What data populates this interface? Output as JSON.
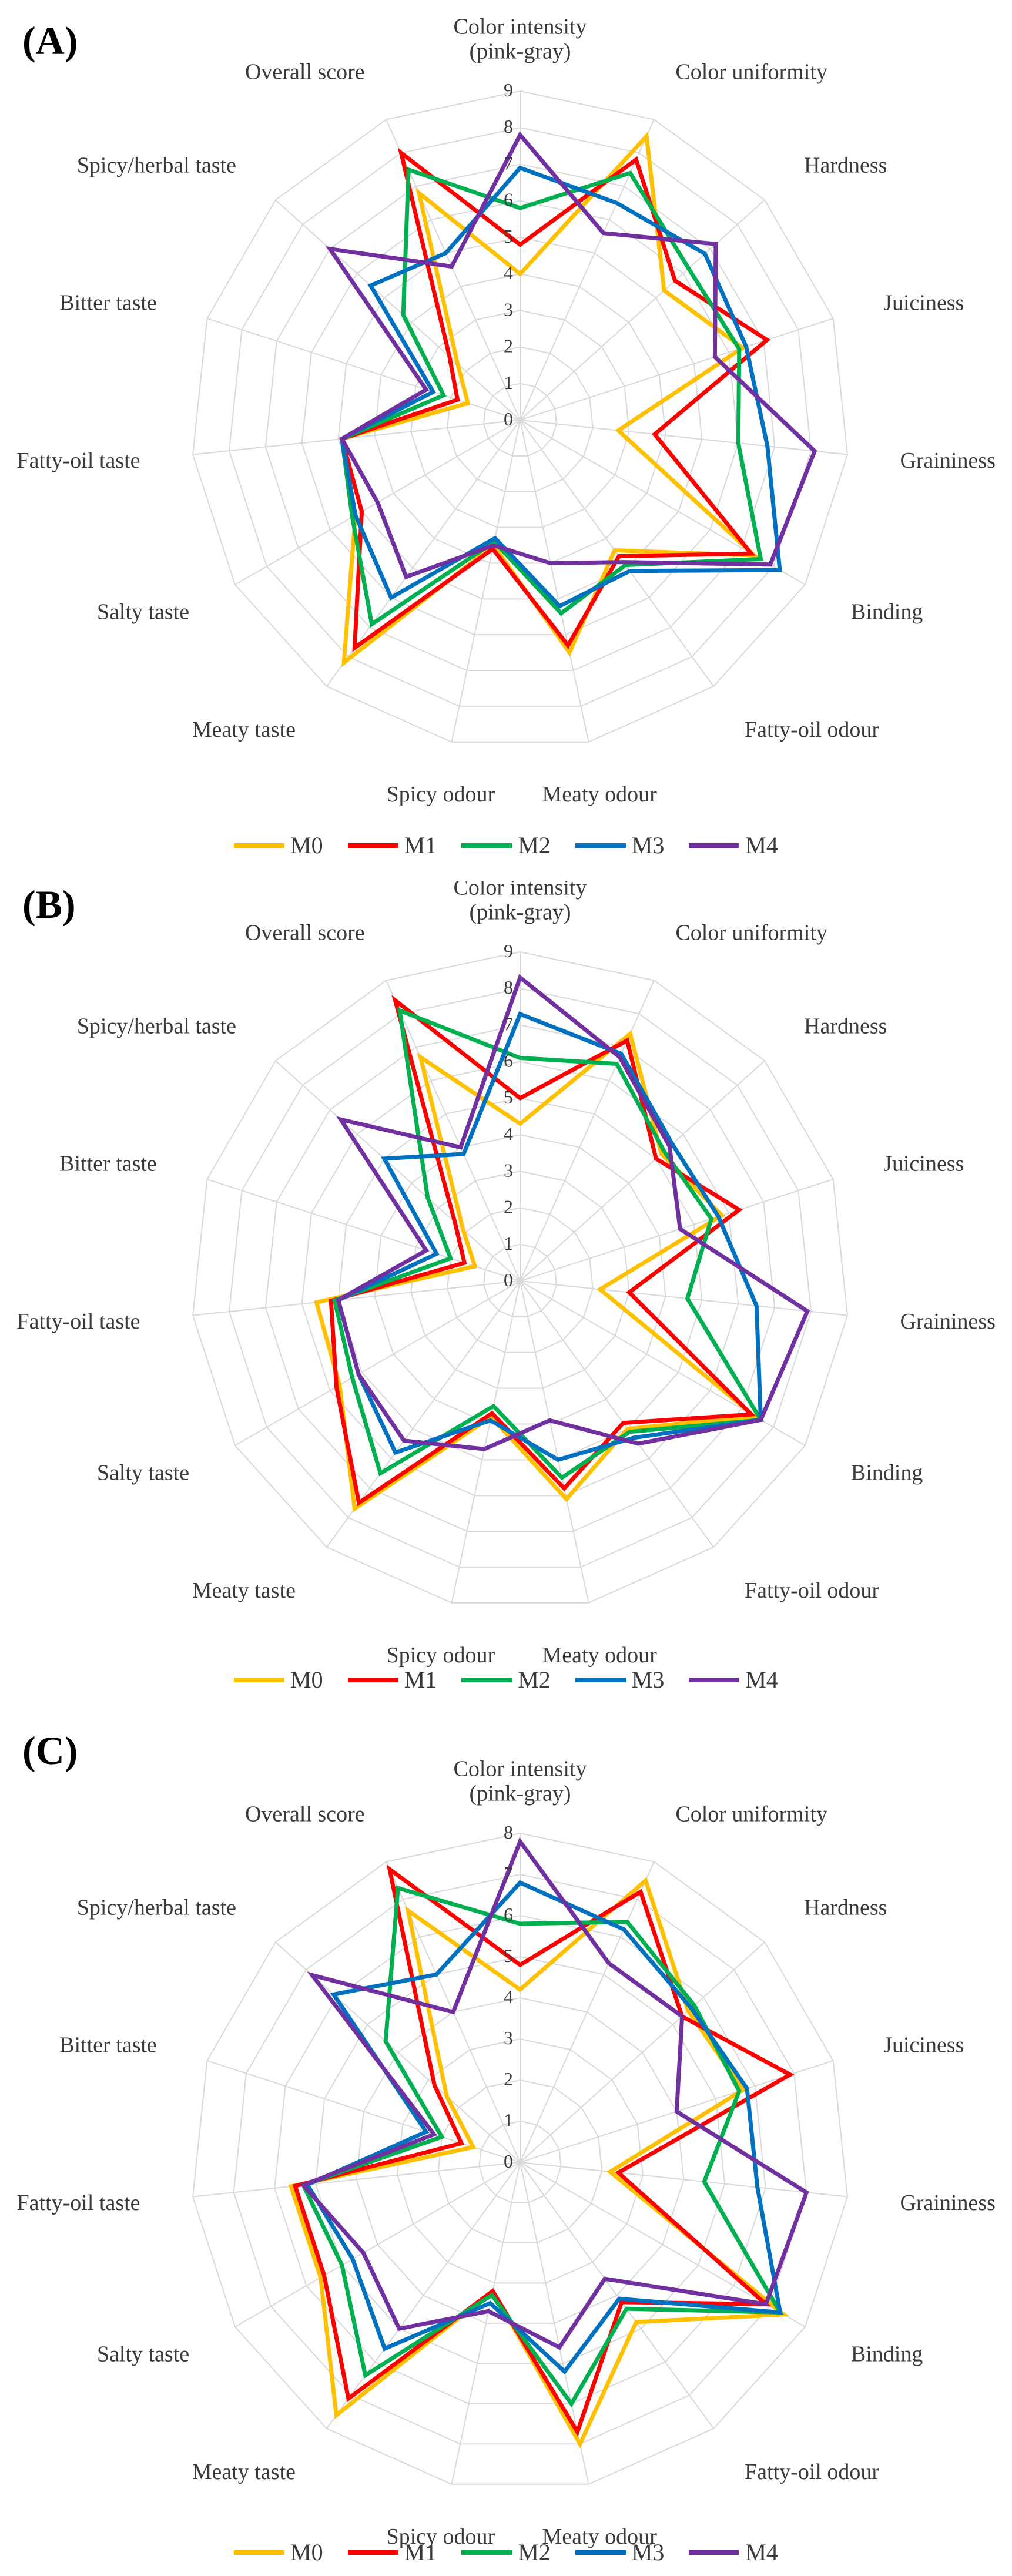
{
  "panels": [
    {
      "label": "(A)"
    },
    {
      "label": "(B)"
    },
    {
      "label": "(C)"
    }
  ],
  "chart_data": [
    {
      "type": "radar",
      "panel": "(A)",
      "axes": [
        "Color intensity\n(pink-gray)",
        "Color uniformity",
        "Hardness",
        "Juiciness",
        "Graininess",
        "Binding",
        "Fatty-oil odour",
        "Meaty odour",
        "Spicy odour",
        "Meaty taste",
        "Salty taste",
        "Fatty-oil taste",
        "Bitter taste",
        "Spicy/herbal taste",
        "Overall score"
      ],
      "rmax": 9,
      "ticks": [
        "0",
        "1",
        "2",
        "3",
        "4",
        "5",
        "6",
        "7",
        "8",
        "9"
      ],
      "grid": true,
      "legend_position": "bottom",
      "series": [
        {
          "name": "M0",
          "color": "#FFC000",
          "values": [
            4.0,
            8.5,
            5.3,
            6.4,
            2.7,
            7.4,
            4.4,
            6.5,
            3.5,
            8.2,
            5.2,
            4.9,
            1.5,
            2.3,
            6.8
          ]
        },
        {
          "name": "M1",
          "color": "#FF0000",
          "values": [
            4.8,
            7.8,
            5.7,
            7.1,
            3.7,
            7.3,
            4.6,
            6.3,
            3.6,
            7.7,
            5.0,
            4.9,
            1.8,
            2.6,
            8.0
          ]
        },
        {
          "name": "M2",
          "color": "#00B050",
          "values": [
            5.8,
            7.4,
            6.2,
            6.3,
            6.0,
            7.6,
            4.9,
            5.4,
            3.4,
            6.9,
            5.3,
            4.9,
            2.2,
            4.3,
            7.5
          ]
        },
        {
          "name": "M3",
          "color": "#0070C0",
          "values": [
            6.9,
            6.5,
            6.8,
            6.5,
            6.8,
            8.2,
            5.1,
            5.2,
            3.3,
            6.0,
            5.2,
            4.9,
            2.5,
            5.5,
            5.0
          ]
        },
        {
          "name": "M4",
          "color": "#7030A0",
          "values": [
            7.8,
            5.6,
            7.2,
            5.6,
            8.1,
            7.9,
            4.8,
            4.0,
            3.5,
            5.3,
            4.5,
            4.9,
            2.7,
            7.0,
            4.6
          ]
        }
      ]
    },
    {
      "type": "radar",
      "panel": "(B)",
      "axes": [
        "Color intensity\n(pink-gray)",
        "Color uniformity",
        "Hardness",
        "Juiciness",
        "Graininess",
        "Binding",
        "Fatty-oil odour",
        "Meaty odour",
        "Spicy odour",
        "Meaty taste",
        "Salty taste",
        "Fatty-oil taste",
        "Bitter taste",
        "Spicy/herbal taste",
        "Overall score"
      ],
      "rmax": 9,
      "ticks": [
        "0",
        "1",
        "2",
        "3",
        "4",
        "5",
        "6",
        "7",
        "8",
        "9"
      ],
      "grid": true,
      "legend_position": "bottom",
      "series": [
        {
          "name": "M0",
          "color": "#FFC000",
          "values": [
            4.3,
            7.4,
            5.2,
            5.8,
            2.2,
            7.4,
            5.0,
            6.1,
            3.8,
            7.7,
            5.7,
            5.6,
            1.3,
            2.1,
            6.7
          ]
        },
        {
          "name": "M1",
          "color": "#FF0000",
          "values": [
            5.0,
            7.2,
            5.0,
            6.3,
            3.0,
            7.3,
            4.8,
            5.8,
            3.7,
            7.5,
            5.8,
            5.2,
            1.6,
            2.4,
            8.4
          ]
        },
        {
          "name": "M2",
          "color": "#00B050",
          "values": [
            6.1,
            6.5,
            5.3,
            5.5,
            4.6,
            7.6,
            5.1,
            5.5,
            3.5,
            6.5,
            5.3,
            5.1,
            2.0,
            3.4,
            8.1
          ]
        },
        {
          "name": "M3",
          "color": "#0070C0",
          "values": [
            7.3,
            6.8,
            5.6,
            5.7,
            6.5,
            7.6,
            5.3,
            5.0,
            3.9,
            5.8,
            5.1,
            5.0,
            2.4,
            5.0,
            3.8
          ]
        },
        {
          "name": "M4",
          "color": "#7030A0",
          "values": [
            8.3,
            6.7,
            5.5,
            4.6,
            7.9,
            7.6,
            5.5,
            3.9,
            4.7,
            5.4,
            5.1,
            5.0,
            2.7,
            6.6,
            4.0
          ]
        }
      ]
    },
    {
      "type": "radar",
      "panel": "(C)",
      "axes": [
        "Color intensity\n(pink-gray)",
        "Color uniformity",
        "Hardness",
        "Juiciness",
        "Graininess",
        "Binding",
        "Fatty-oil odour",
        "Meaty odour",
        "Spicy odour",
        "Meaty taste",
        "Salty taste",
        "Fatty-oil taste",
        "Bitter taste",
        "Spicy/herbal taste",
        "Overall score"
      ],
      "rmax": 8,
      "ticks": [
        "0",
        "1",
        "2",
        "3",
        "4",
        "5",
        "6",
        "7",
        "8"
      ],
      "grid": true,
      "legend_position": "bottom",
      "series": [
        {
          "name": "M0",
          "color": "#FFC000",
          "values": [
            4.2,
            7.5,
            5.5,
            5.7,
            2.2,
            7.4,
            4.8,
            7.0,
            3.2,
            7.6,
            5.6,
            5.6,
            1.2,
            2.4,
            6.7
          ]
        },
        {
          "name": "M1",
          "color": "#FF0000",
          "values": [
            4.8,
            7.2,
            5.3,
            6.9,
            2.4,
            6.9,
            4.2,
            6.7,
            3.2,
            7.1,
            5.5,
            5.5,
            1.5,
            2.8,
            7.8
          ]
        },
        {
          "name": "M2",
          "color": "#00B050",
          "values": [
            5.8,
            6.4,
            5.7,
            5.6,
            4.5,
            7.3,
            4.4,
            6.0,
            3.3,
            6.4,
            5.0,
            5.3,
            2.0,
            4.4,
            7.3
          ]
        },
        {
          "name": "M3",
          "color": "#0070C0",
          "values": [
            6.8,
            6.2,
            5.6,
            5.8,
            5.8,
            7.3,
            4.1,
            5.2,
            3.5,
            5.6,
            4.7,
            5.2,
            2.4,
            6.1,
            5.0
          ]
        },
        {
          "name": "M4",
          "color": "#7030A0",
          "values": [
            7.8,
            5.3,
            5.3,
            4.0,
            7.0,
            6.9,
            3.5,
            4.6,
            3.7,
            5.0,
            4.4,
            5.3,
            2.2,
            6.8,
            4.0
          ]
        }
      ]
    }
  ]
}
